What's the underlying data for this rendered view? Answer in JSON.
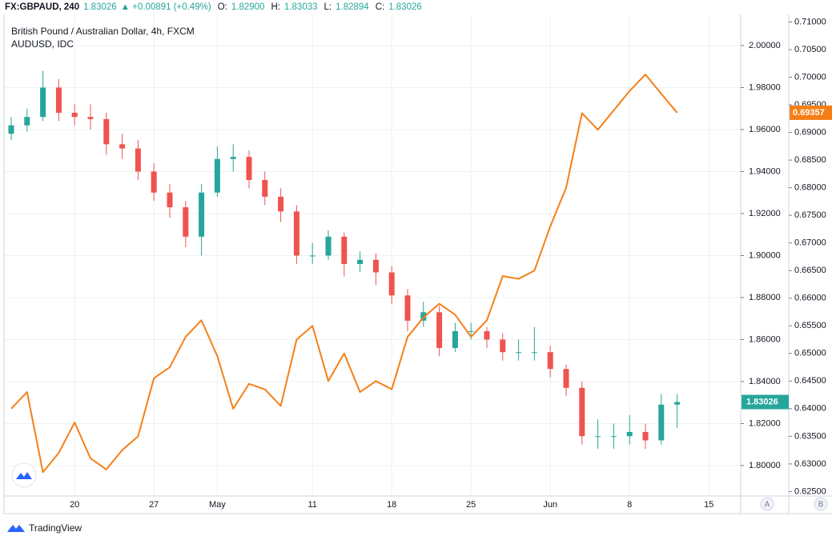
{
  "header": {
    "symbol": "FX:GBPAUD, 240",
    "last": "1.83026",
    "change": "▲ +0.00891 (+0.49%)",
    "items": [
      {
        "label": "O:",
        "value": "1.82900"
      },
      {
        "label": "H:",
        "value": "1.83033"
      },
      {
        "label": "L:",
        "value": "1.82894"
      },
      {
        "label": "C:",
        "value": "1.83026"
      }
    ]
  },
  "chart_data": {
    "type": "candlestick",
    "title": "British Pound / Australian Dollar, 4h, FXCM",
    "categories": [
      null,
      null,
      null,
      null,
      "20",
      null,
      null,
      null,
      null,
      "27",
      null,
      null,
      null,
      "May",
      null,
      null,
      null,
      null,
      null,
      "11",
      null,
      null,
      null,
      null,
      "18",
      null,
      null,
      null,
      null,
      "25",
      null,
      null,
      null,
      null,
      "Jun",
      null,
      null,
      null,
      null,
      "8",
      null,
      null,
      null,
      null,
      "15",
      null
    ],
    "series": [
      {
        "name": "British Pound / Australian Dollar, 4h, FXCM",
        "type": "candlestick",
        "up_color": "#26a69a",
        "down_color": "#ef5350",
        "open": [
          1.958,
          1.962,
          1.966,
          1.98,
          1.968,
          1.966,
          1.965,
          1.953,
          1.951,
          1.94,
          1.93,
          1.923,
          1.909,
          1.93,
          1.946,
          1.947,
          1.936,
          1.928,
          1.921,
          1.9,
          1.9,
          1.909,
          1.896,
          1.898,
          1.892,
          1.881,
          1.869,
          1.873,
          1.856,
          1.864,
          1.864,
          1.86,
          1.854,
          1.854,
          1.854,
          1.846,
          1.837,
          1.814,
          1.814,
          1.814,
          1.816,
          1.812,
          1.829,
          null,
          null,
          null
        ],
        "high": [
          1.966,
          1.97,
          1.988,
          1.984,
          1.972,
          1.972,
          1.968,
          1.958,
          1.955,
          1.944,
          1.934,
          1.926,
          1.934,
          1.952,
          1.953,
          1.95,
          1.94,
          1.932,
          1.924,
          1.906,
          1.912,
          1.911,
          1.902,
          1.901,
          1.895,
          1.884,
          1.878,
          1.876,
          1.868,
          1.868,
          1.866,
          1.863,
          1.86,
          1.866,
          1.857,
          1.848,
          1.84,
          1.822,
          1.82,
          1.824,
          1.82,
          1.834,
          1.834,
          null,
          null,
          null
        ],
        "low": [
          1.955,
          1.959,
          1.964,
          1.964,
          1.962,
          1.96,
          1.948,
          1.946,
          1.936,
          1.926,
          1.918,
          1.904,
          1.9,
          1.928,
          1.94,
          1.932,
          1.924,
          1.916,
          1.896,
          1.896,
          1.898,
          1.89,
          1.892,
          1.886,
          1.877,
          1.864,
          1.866,
          1.852,
          1.854,
          1.86,
          1.856,
          1.85,
          1.85,
          1.85,
          1.842,
          1.833,
          1.81,
          1.808,
          1.808,
          1.81,
          1.808,
          1.81,
          1.818,
          null,
          null,
          null
        ],
        "close": [
          1.962,
          1.966,
          1.98,
          1.968,
          1.966,
          1.965,
          1.953,
          1.951,
          1.94,
          1.93,
          1.923,
          1.909,
          1.93,
          1.946,
          1.947,
          1.936,
          1.928,
          1.921,
          1.9,
          1.9,
          1.909,
          1.896,
          1.898,
          1.892,
          1.881,
          1.869,
          1.873,
          1.856,
          1.864,
          1.864,
          1.86,
          1.854,
          1.854,
          1.854,
          1.846,
          1.837,
          1.814,
          1.814,
          1.814,
          1.816,
          1.812,
          1.829,
          1.83026,
          null,
          null,
          null
        ]
      },
      {
        "name": "AUDUSD, IDC",
        "type": "line",
        "axis": "y2",
        "color": "#f57f17",
        "values": [
          0.64,
          0.643,
          0.6285,
          0.632,
          0.6375,
          0.631,
          0.629,
          0.6325,
          0.635,
          0.6455,
          0.6475,
          0.653,
          0.656,
          0.6495,
          0.64,
          0.6445,
          0.6435,
          0.6405,
          0.6525,
          0.655,
          0.645,
          0.65,
          0.643,
          0.645,
          0.6435,
          0.653,
          0.6565,
          0.659,
          0.657,
          0.653,
          0.656,
          0.664,
          0.6635,
          0.665,
          0.673,
          0.68,
          0.6935,
          0.6905,
          0.694,
          0.6975,
          0.7005,
          0.697,
          0.69357,
          null,
          null,
          null
        ]
      }
    ],
    "ylim": [
      1.7855,
      2.0217
    ],
    "yticks": [
      {
        "value": 1.8,
        "label": "1.80000"
      },
      {
        "value": 1.82,
        "label": "1.82000"
      },
      {
        "value": 1.84,
        "label": "1.84000"
      },
      {
        "value": 1.86,
        "label": "1.86000"
      },
      {
        "value": 1.88,
        "label": "1.88000"
      },
      {
        "value": 1.9,
        "label": "1.90000"
      },
      {
        "value": 1.92,
        "label": "1.92000"
      },
      {
        "value": 1.94,
        "label": "1.94000"
      },
      {
        "value": 1.96,
        "label": "1.96000"
      },
      {
        "value": 1.98,
        "label": "1.98000"
      },
      {
        "value": 2.0,
        "label": "2.00000"
      }
    ],
    "y2lim": [
      0.62419,
      0.71398
    ],
    "y2ticks": [
      {
        "value": 0.625,
        "label": "0.62500"
      },
      {
        "value": 0.63,
        "label": "0.63000"
      },
      {
        "value": 0.635,
        "label": "0.63500"
      },
      {
        "value": 0.64,
        "label": "0.64000"
      },
      {
        "value": 0.645,
        "label": "0.64500"
      },
      {
        "value": 0.65,
        "label": "0.65000"
      },
      {
        "value": 0.655,
        "label": "0.65500"
      },
      {
        "value": 0.66,
        "label": "0.66000"
      },
      {
        "value": 0.665,
        "label": "0.66500"
      },
      {
        "value": 0.67,
        "label": "0.67000"
      },
      {
        "value": 0.675,
        "label": "0.67500"
      },
      {
        "value": 0.68,
        "label": "0.68000"
      },
      {
        "value": 0.685,
        "label": "0.68500"
      },
      {
        "value": 0.69,
        "label": "0.69000"
      },
      {
        "value": 0.695,
        "label": "0.69500"
      },
      {
        "value": 0.7,
        "label": "0.70000"
      },
      {
        "value": 0.705,
        "label": "0.70500"
      },
      {
        "value": 0.71,
        "label": "0.71000"
      }
    ],
    "grid": true
  },
  "buttons": [
    "A",
    "B"
  ],
  "footer": "TradingView"
}
